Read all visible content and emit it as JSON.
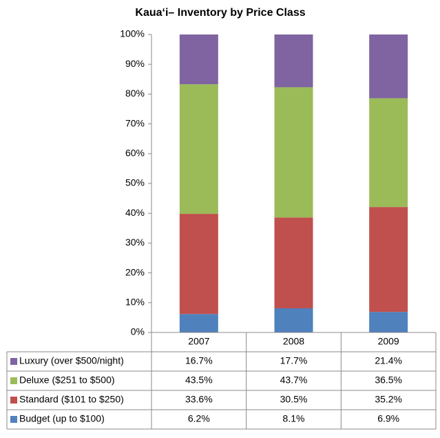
{
  "chart_data": {
    "type": "stacked_bar",
    "title": "Kaua‘i– Inventory by Price Class",
    "categories": [
      "2007",
      "2008",
      "2009"
    ],
    "series": [
      {
        "name": "Budget (up to $100)",
        "color": "#4f81bd",
        "values": [
          6.2,
          8.1,
          6.9
        ],
        "value_labels": [
          "6.2%",
          "8.1%",
          "6.9%"
        ]
      },
      {
        "name": "Standard ($101 to $250)",
        "color": "#c0504d",
        "values": [
          33.6,
          30.5,
          35.2
        ],
        "value_labels": [
          "33.6%",
          "30.5%",
          "35.2%"
        ]
      },
      {
        "name": "Deluxe ($251 to $500)",
        "color": "#9bbb59",
        "values": [
          43.5,
          43.7,
          36.5
        ],
        "value_labels": [
          "43.5%",
          "43.7%",
          "36.5%"
        ]
      },
      {
        "name": "Luxury (over $500/night)",
        "color": "#8064a2",
        "values": [
          16.7,
          17.7,
          21.4
        ],
        "value_labels": [
          "16.7%",
          "17.7%",
          "21.4%"
        ]
      }
    ],
    "ylim": [
      0,
      100
    ],
    "yticks": [
      {
        "value": 0,
        "label": "0%"
      },
      {
        "value": 10,
        "label": "10%"
      },
      {
        "value": 20,
        "label": "20%"
      },
      {
        "value": 30,
        "label": "30%"
      },
      {
        "value": 40,
        "label": "40%"
      },
      {
        "value": 50,
        "label": "50%"
      },
      {
        "value": 60,
        "label": "60%"
      },
      {
        "value": 70,
        "label": "70%"
      },
      {
        "value": 80,
        "label": "80%"
      },
      {
        "value": 90,
        "label": "90%"
      },
      {
        "value": 100,
        "label": "100%"
      }
    ],
    "data_table": true
  }
}
